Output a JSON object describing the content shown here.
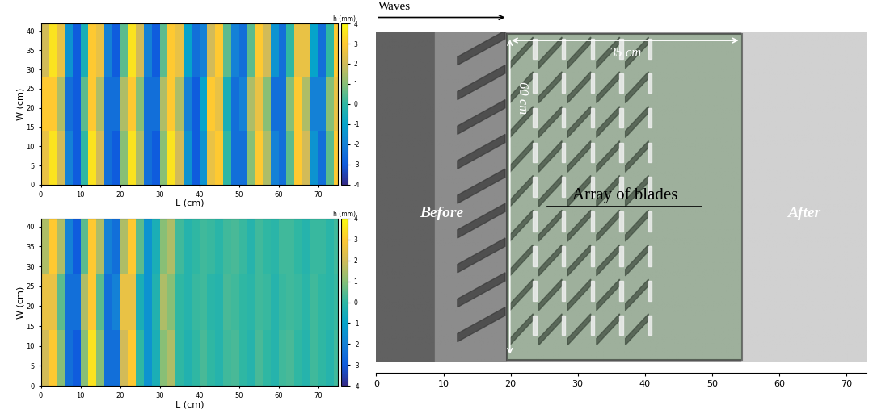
{
  "chart_data": [
    {
      "type": "heatmap",
      "xlabel": "L (cm)",
      "ylabel": "W (cm)",
      "x_edges": [
        0,
        2,
        4,
        6,
        8,
        10,
        12,
        14,
        16,
        18,
        20,
        22,
        24,
        26,
        28,
        30,
        32,
        34,
        36,
        38,
        40,
        42,
        44,
        46,
        48,
        50,
        52,
        54,
        56,
        58,
        60,
        62,
        64,
        66,
        68,
        70,
        72,
        74,
        76
      ],
      "y_edges": [
        0,
        14,
        28,
        42
      ],
      "cells": [
        [
          2.5,
          3.5,
          2,
          -2,
          -3,
          0,
          3.5,
          2,
          -2.5,
          -3,
          1,
          3.5,
          1.5,
          -2.5,
          -3,
          1,
          3.5,
          2,
          -1.5,
          -3,
          -1.5,
          2.5,
          3,
          0,
          -2.5,
          -2.5,
          1,
          3,
          1.5,
          -2,
          -2.5,
          0.5,
          3,
          2,
          -1.5,
          -2.5,
          0.5,
          3
        ],
        [
          3,
          3,
          1.5,
          -2.5,
          -3,
          0.5,
          3,
          1.5,
          -2.5,
          -2.5,
          1.5,
          3,
          1,
          -2.5,
          -2.5,
          1.5,
          3,
          1.5,
          -2,
          -3,
          -1,
          3,
          2.5,
          -0.5,
          -2.5,
          -2,
          1.5,
          2.5,
          1,
          -2.5,
          -2.5,
          1,
          3,
          1.5,
          -2,
          -2,
          1,
          2.5
        ],
        [
          2,
          3.5,
          2.5,
          -1.5,
          -3,
          -0.5,
          3,
          2.5,
          -2,
          -3,
          0.5,
          3.5,
          2,
          -2,
          -3,
          0.5,
          3,
          2.5,
          -1,
          -2.5,
          -2,
          2,
          3,
          0.5,
          -2,
          -2.5,
          0.5,
          3,
          2,
          -1.5,
          -2.5,
          0,
          2.5,
          2.5,
          -1,
          -2.5,
          0,
          3
        ]
      ],
      "xlim": [
        0,
        75
      ],
      "ylim": [
        0,
        42
      ],
      "xticks": [
        0,
        10,
        20,
        30,
        40,
        50,
        60,
        70
      ],
      "yticks": [
        0,
        5,
        10,
        15,
        20,
        25,
        30,
        35,
        40
      ],
      "colorbar": {
        "label": "h (mm)",
        "range": [
          -4,
          4
        ],
        "ticks": [
          -4,
          -3,
          -2,
          -1,
          0,
          1,
          2,
          3,
          4
        ]
      }
    },
    {
      "type": "heatmap",
      "xlabel": "L (cm)",
      "ylabel": "W (cm)",
      "x_edges": [
        0,
        2,
        4,
        6,
        8,
        10,
        12,
        14,
        16,
        18,
        20,
        22,
        24,
        26,
        28,
        30,
        32,
        34,
        36,
        38,
        40,
        42,
        44,
        46,
        48,
        50,
        52,
        54,
        56,
        58,
        60,
        62,
        64,
        66,
        68,
        70,
        72,
        74,
        76
      ],
      "y_edges": [
        0,
        14,
        28,
        42
      ],
      "cells": [
        [
          2,
          3,
          1,
          -2.5,
          -3,
          1,
          3.5,
          1,
          -2.5,
          -2.5,
          2,
          3,
          0,
          -1.5,
          -0.5,
          1,
          1.5,
          0,
          -0.3,
          0,
          0.3,
          0,
          -0.2,
          0.2,
          0.3,
          0,
          -0.2,
          0.3,
          0,
          -0.2,
          0.2,
          0.3,
          0,
          -0.2,
          0.2,
          0,
          -0.2,
          0.2
        ],
        [
          2.5,
          2.5,
          0.5,
          -2.5,
          -2.5,
          1.5,
          3,
          0.5,
          -2.5,
          -2,
          2.5,
          2.5,
          -0.5,
          -1.5,
          -0.3,
          1.5,
          1,
          0,
          -0.2,
          0.1,
          0.2,
          -0.1,
          -0.2,
          0.3,
          0.2,
          0,
          -0.1,
          0.2,
          0.1,
          -0.2,
          0.1,
          0.2,
          0.1,
          -0.1,
          0.2,
          0,
          -0.1,
          0.1
        ],
        [
          1.5,
          3,
          1.5,
          -2,
          -3,
          0.5,
          3,
          1.5,
          -2,
          -2.5,
          1.5,
          3,
          0.5,
          -1.5,
          -0.5,
          1,
          1.5,
          0.2,
          -0.2,
          0,
          0.2,
          0.1,
          -0.1,
          0.2,
          0.3,
          0.1,
          -0.2,
          0.2,
          0,
          -0.1,
          0.2,
          0.2,
          0,
          -0.2,
          0.1,
          0.1,
          -0.1,
          0.2
        ]
      ],
      "xlim": [
        0,
        75
      ],
      "ylim": [
        0,
        42
      ],
      "xticks": [
        0,
        10,
        20,
        30,
        40,
        50,
        60,
        70
      ],
      "yticks": [
        0,
        5,
        10,
        15,
        20,
        25,
        30,
        35,
        40
      ],
      "colorbar": {
        "label": "h (mm)",
        "range": [
          -4,
          4
        ],
        "ticks": [
          -4,
          -3,
          -2,
          -1,
          0,
          1,
          2,
          3,
          4
        ]
      }
    }
  ],
  "photo": {
    "arrow_label": "Waves",
    "before": "Before",
    "array": "Array of blades",
    "after": "After",
    "length_label": "35 cm",
    "width_label": "60 cm",
    "array_range": [
      19.5,
      54.5
    ],
    "blades_range": [
      19.5,
      41
    ],
    "xlim": [
      0,
      73
    ],
    "xticks": [
      0,
      10,
      20,
      30,
      40,
      50,
      60,
      70
    ]
  }
}
